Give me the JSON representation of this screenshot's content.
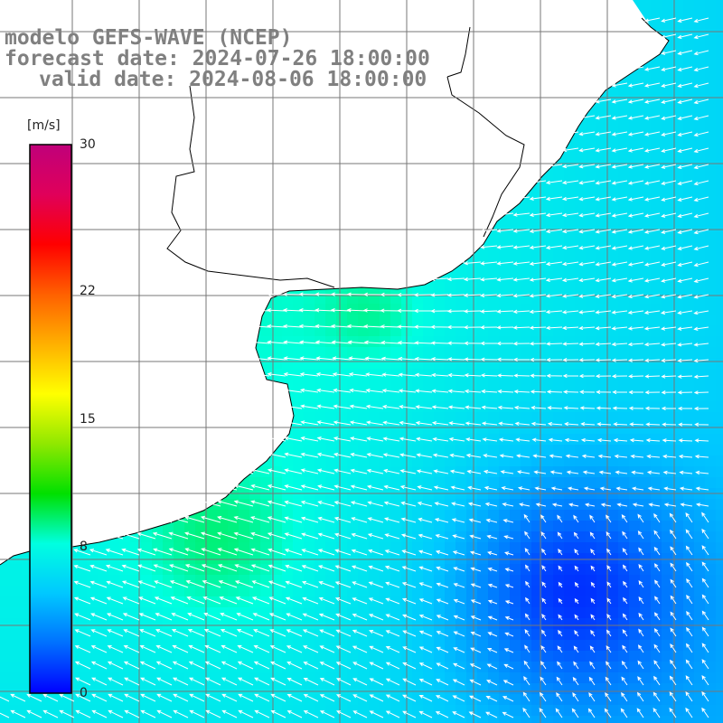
{
  "title": {
    "model": "modelo GEFS-WAVE (NCEP)",
    "forecast_date": "forecast date: 2024-07-26 18:00:00",
    "valid_date": "valid date: 2024-08-06 18:00:00"
  },
  "colorbar": {
    "unit": "[m/s]",
    "min": 0,
    "max": 30,
    "ticks": [
      {
        "value": 30,
        "label": "30"
      },
      {
        "value": 22,
        "label": "22"
      },
      {
        "value": 15,
        "label": "15"
      },
      {
        "value": 8,
        "label": "8"
      },
      {
        "value": 0,
        "label": "0"
      }
    ],
    "colors": [
      "#0000ff",
      "#0070ff",
      "#00c8ff",
      "#00ffe0",
      "#00e000",
      "#90e800",
      "#ffff00",
      "#ffb000",
      "#ff6000",
      "#ff0000",
      "#e0005a",
      "#c0007a"
    ]
  },
  "chart_data": {
    "type": "heatmap",
    "variable": "wind speed with direction arrows",
    "unit": "m/s",
    "value_range": [
      0,
      30
    ],
    "description_of_field": [
      {
        "region": "near coast",
        "speed_m_s": [
          7,
          9
        ]
      },
      {
        "region": "central basin",
        "speed_m_s": [
          4,
          6
        ]
      },
      {
        "region": "southeast",
        "speed_m_s": [
          1,
          3
        ]
      }
    ],
    "arrow_direction": "mostly from the east/northeast, turning to south-westward flow in the south-west",
    "grid": true
  }
}
